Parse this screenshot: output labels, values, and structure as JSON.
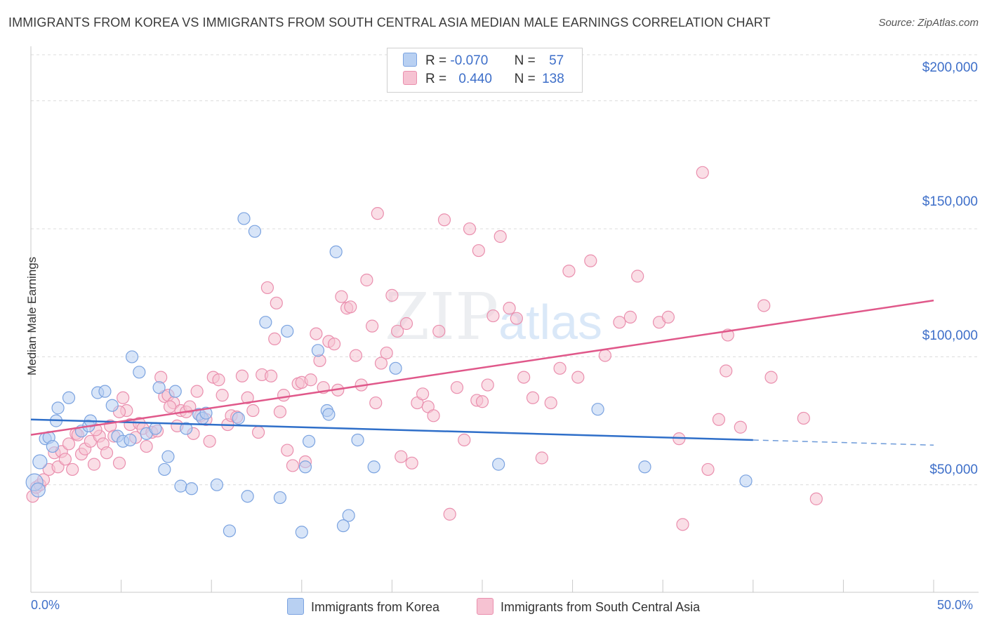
{
  "header": {
    "title": "IMMIGRANTS FROM KOREA VS IMMIGRANTS FROM SOUTH CENTRAL ASIA MEDIAN MALE EARNINGS CORRELATION CHART",
    "source": "Source: ZipAtlas.com"
  },
  "legend": {
    "r_label": "R =",
    "n_label": "N =",
    "korea": {
      "r": "-0.070",
      "n": "57"
    },
    "sca": {
      "r": "0.440",
      "n": "138"
    }
  },
  "watermark": {
    "zip": "ZIP",
    "atlas": "atlas"
  },
  "colors": {
    "korea_fill": "#b8d0f2",
    "korea_stroke": "#7ba3e0",
    "korea_line": "#2f6fc9",
    "sca_fill": "#f6c2d2",
    "sca_stroke": "#ea8fae",
    "sca_line": "#e0588a",
    "accent_text": "#3e6fc9"
  },
  "chart_data": {
    "type": "scatter",
    "title": "IMMIGRANTS FROM KOREA VS IMMIGRANTS FROM SOUTH CENTRAL ASIA MEDIAN MALE EARNINGS CORRELATION CHART",
    "xlabel": "",
    "ylabel": "Median Male Earnings",
    "xlim": [
      0,
      50
    ],
    "ylim": [
      8000,
      218000
    ],
    "x_tick_labels": [
      "0.0%",
      "50.0%"
    ],
    "y_ticks": [
      50000,
      100000,
      150000,
      200000
    ],
    "y_tick_labels": [
      "$50,000",
      "$100,000",
      "$150,000",
      "$200,000"
    ],
    "grid": true,
    "legend_position": "top-center",
    "series": [
      {
        "name": "Immigrants from Korea",
        "r": -0.07,
        "n": 57,
        "trend": {
          "x_start": 0,
          "y_start": 75500,
          "x_end": 40,
          "y_end": 67500,
          "x_dash_end": 50,
          "y_dash_end": 65500
        },
        "points": [
          [
            0.2,
            51000
          ],
          [
            0.5,
            59000
          ],
          [
            0.4,
            48000
          ],
          [
            0.8,
            68000
          ],
          [
            1.0,
            68500
          ],
          [
            1.2,
            65000
          ],
          [
            1.4,
            75000
          ],
          [
            1.5,
            80000
          ],
          [
            2.1,
            84000
          ],
          [
            2.8,
            71000
          ],
          [
            3.2,
            73000
          ],
          [
            3.3,
            75000
          ],
          [
            3.7,
            86000
          ],
          [
            4.1,
            86500
          ],
          [
            4.5,
            81000
          ],
          [
            4.8,
            69000
          ],
          [
            5.1,
            67000
          ],
          [
            5.5,
            67500
          ],
          [
            5.6,
            100000
          ],
          [
            6.0,
            94000
          ],
          [
            6.4,
            70000
          ],
          [
            6.9,
            72000
          ],
          [
            7.1,
            88000
          ],
          [
            7.4,
            56000
          ],
          [
            7.6,
            61000
          ],
          [
            8.0,
            86500
          ],
          [
            8.3,
            49500
          ],
          [
            8.6,
            72000
          ],
          [
            8.9,
            48500
          ],
          [
            9.3,
            77500
          ],
          [
            9.5,
            76000
          ],
          [
            9.7,
            78000
          ],
          [
            10.3,
            50000
          ],
          [
            11.0,
            32000
          ],
          [
            11.5,
            76000
          ],
          [
            11.8,
            154000
          ],
          [
            12.0,
            45500
          ],
          [
            12.4,
            149000
          ],
          [
            13.0,
            113500
          ],
          [
            13.8,
            45000
          ],
          [
            14.2,
            110000
          ],
          [
            15.0,
            31500
          ],
          [
            15.2,
            57000
          ],
          [
            15.4,
            67000
          ],
          [
            15.9,
            102500
          ],
          [
            16.4,
            79000
          ],
          [
            16.5,
            77500
          ],
          [
            16.9,
            141000
          ],
          [
            17.6,
            38000
          ],
          [
            17.3,
            34000
          ],
          [
            18.1,
            67500
          ],
          [
            19.0,
            57000
          ],
          [
            20.2,
            95500
          ],
          [
            25.9,
            58000
          ],
          [
            31.4,
            79500
          ],
          [
            34.0,
            57000
          ],
          [
            39.6,
            51500
          ]
        ]
      },
      {
        "name": "Immigrants from South Central Asia",
        "r": 0.44,
        "n": 138,
        "trend": {
          "x_start": 0,
          "y_start": 69500,
          "x_end": 50,
          "y_end": 122000
        },
        "points": [
          [
            0.1,
            45500
          ],
          [
            0.3,
            49000
          ],
          [
            0.5,
            50000
          ],
          [
            0.7,
            52000
          ],
          [
            1.0,
            56000
          ],
          [
            1.3,
            62500
          ],
          [
            1.5,
            57000
          ],
          [
            1.7,
            63000
          ],
          [
            1.9,
            60000
          ],
          [
            2.1,
            66000
          ],
          [
            2.3,
            56000
          ],
          [
            2.5,
            70000
          ],
          [
            2.8,
            62000
          ],
          [
            3.0,
            64000
          ],
          [
            3.3,
            67000
          ],
          [
            3.5,
            58000
          ],
          [
            3.8,
            69000
          ],
          [
            4.0,
            66000
          ],
          [
            4.2,
            62500
          ],
          [
            4.4,
            73000
          ],
          [
            4.6,
            69000
          ],
          [
            4.9,
            58500
          ],
          [
            5.1,
            84000
          ],
          [
            5.3,
            79000
          ],
          [
            5.5,
            73500
          ],
          [
            5.8,
            68500
          ],
          [
            6.0,
            74000
          ],
          [
            6.2,
            72000
          ],
          [
            6.4,
            65000
          ],
          [
            6.7,
            70500
          ],
          [
            7.0,
            71000
          ],
          [
            7.2,
            92000
          ],
          [
            7.4,
            84500
          ],
          [
            7.6,
            85000
          ],
          [
            7.9,
            82000
          ],
          [
            8.1,
            73000
          ],
          [
            8.3,
            79000
          ],
          [
            8.6,
            78500
          ],
          [
            8.8,
            80500
          ],
          [
            9.0,
            70000
          ],
          [
            9.2,
            86500
          ],
          [
            9.4,
            77000
          ],
          [
            9.7,
            75500
          ],
          [
            9.9,
            67000
          ],
          [
            10.1,
            92000
          ],
          [
            10.4,
            91000
          ],
          [
            10.6,
            85000
          ],
          [
            10.9,
            73500
          ],
          [
            11.1,
            77000
          ],
          [
            11.4,
            76500
          ],
          [
            11.7,
            92500
          ],
          [
            12.0,
            84000
          ],
          [
            12.3,
            79000
          ],
          [
            12.6,
            70500
          ],
          [
            12.8,
            93000
          ],
          [
            13.1,
            127000
          ],
          [
            13.3,
            92500
          ],
          [
            13.5,
            107000
          ],
          [
            13.8,
            78500
          ],
          [
            14.0,
            85000
          ],
          [
            14.2,
            63500
          ],
          [
            14.5,
            57500
          ],
          [
            14.8,
            89500
          ],
          [
            15.0,
            90000
          ],
          [
            15.2,
            59000
          ],
          [
            15.5,
            91000
          ],
          [
            15.8,
            109000
          ],
          [
            16.0,
            98500
          ],
          [
            16.2,
            88000
          ],
          [
            16.5,
            106000
          ],
          [
            16.8,
            105000
          ],
          [
            17.0,
            87000
          ],
          [
            17.2,
            123500
          ],
          [
            17.5,
            119000
          ],
          [
            17.7,
            119500
          ],
          [
            18.0,
            100500
          ],
          [
            18.3,
            89000
          ],
          [
            18.6,
            130000
          ],
          [
            18.9,
            112000
          ],
          [
            19.1,
            82000
          ],
          [
            19.4,
            97500
          ],
          [
            19.7,
            101500
          ],
          [
            20.0,
            124000
          ],
          [
            20.3,
            110000
          ],
          [
            20.5,
            61000
          ],
          [
            20.8,
            113000
          ],
          [
            21.1,
            58500
          ],
          [
            21.4,
            82000
          ],
          [
            21.7,
            85500
          ],
          [
            22.0,
            80500
          ],
          [
            22.3,
            77000
          ],
          [
            22.6,
            110000
          ],
          [
            22.9,
            153500
          ],
          [
            23.2,
            38500
          ],
          [
            23.6,
            88000
          ],
          [
            24.0,
            67500
          ],
          [
            24.3,
            150000
          ],
          [
            24.7,
            83000
          ],
          [
            25.0,
            82500
          ],
          [
            25.3,
            89000
          ],
          [
            25.6,
            116000
          ],
          [
            26.0,
            147000
          ],
          [
            26.5,
            119000
          ],
          [
            26.9,
            115000
          ],
          [
            27.3,
            92000
          ],
          [
            27.8,
            84000
          ],
          [
            28.3,
            60500
          ],
          [
            28.8,
            82000
          ],
          [
            29.3,
            95500
          ],
          [
            29.8,
            133500
          ],
          [
            30.3,
            92000
          ],
          [
            31.0,
            137500
          ],
          [
            31.8,
            100500
          ],
          [
            32.6,
            113500
          ],
          [
            33.2,
            115500
          ],
          [
            33.6,
            131500
          ],
          [
            34.8,
            113500
          ],
          [
            35.3,
            115500
          ],
          [
            35.9,
            68000
          ],
          [
            36.1,
            34500
          ],
          [
            37.2,
            172000
          ],
          [
            37.5,
            56000
          ],
          [
            38.1,
            75500
          ],
          [
            38.5,
            94500
          ],
          [
            38.6,
            108500
          ],
          [
            39.3,
            72500
          ],
          [
            40.6,
            120000
          ],
          [
            41.0,
            92000
          ],
          [
            42.8,
            76000
          ],
          [
            43.5,
            44500
          ],
          [
            19.2,
            156000
          ],
          [
            24.8,
            141500
          ],
          [
            13.6,
            121000
          ],
          [
            7.7,
            80500
          ],
          [
            4.9,
            78500
          ],
          [
            3.6,
            71500
          ],
          [
            2.6,
            69500
          ]
        ]
      }
    ]
  }
}
